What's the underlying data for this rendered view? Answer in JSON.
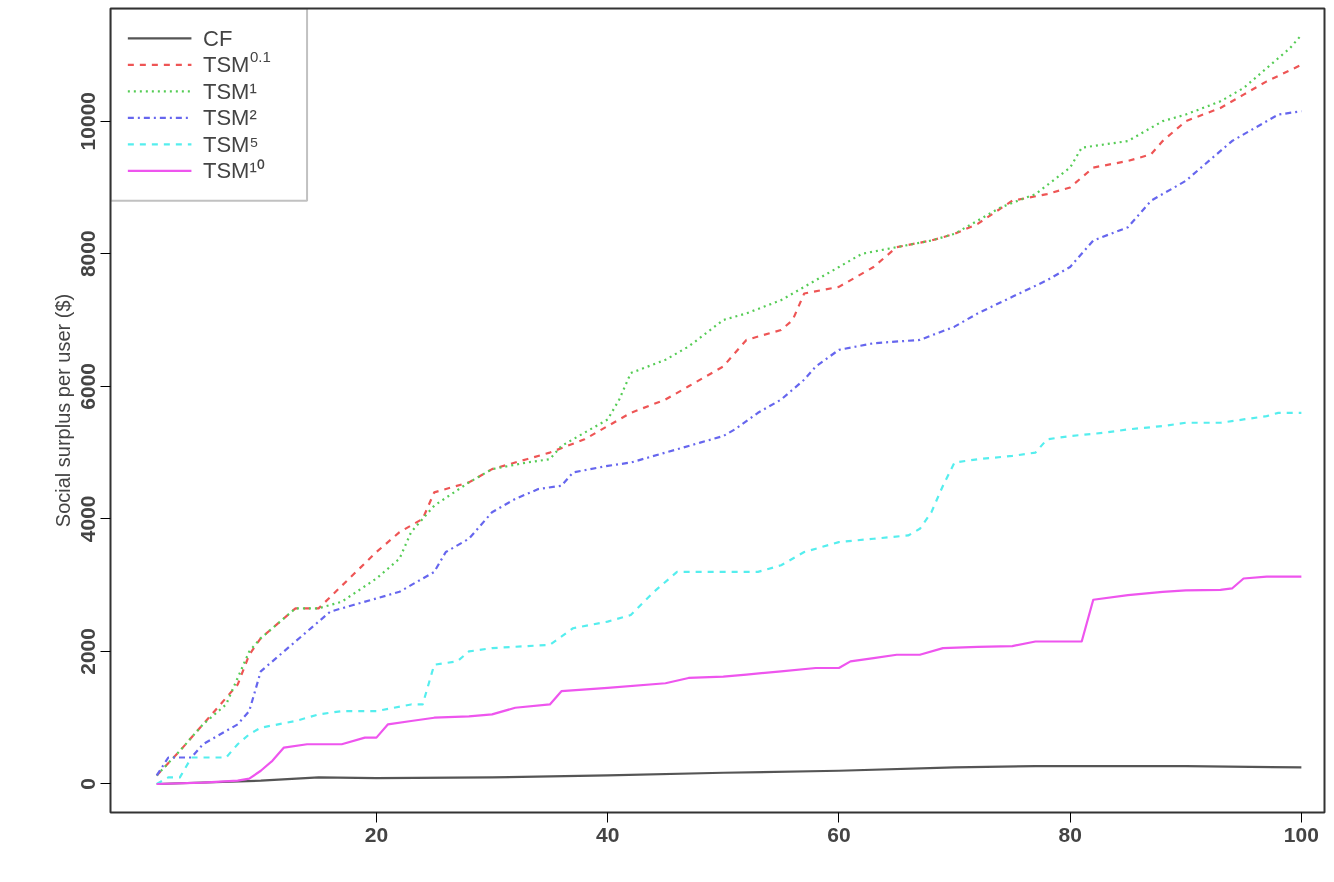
{
  "chart_data": {
    "type": "line",
    "ylabel": "Social surplus per user ($)",
    "xlim": [
      -3,
      102
    ],
    "ylim": [
      -430,
      11700
    ],
    "xticks": [
      20,
      40,
      60,
      80,
      100
    ],
    "yticks": [
      0,
      2000,
      4000,
      6000,
      8000,
      10000
    ],
    "grid": false,
    "legend": "top left",
    "series": [
      {
        "name": "CF",
        "color": "#555555",
        "line_style": "solid",
        "x": [
          1,
          10,
          15,
          20,
          30,
          40,
          50,
          60,
          70,
          77,
          90,
          100
        ],
        "values": [
          0,
          50,
          100,
          90,
          100,
          130,
          170,
          200,
          250,
          270,
          270,
          250
        ]
      },
      {
        "name": "TSM$^{0.1}$",
        "color": "#ee5555",
        "line_style": "dashed",
        "x": [
          1,
          3,
          5,
          7,
          8,
          9,
          10,
          12,
          13,
          15,
          20,
          22,
          24,
          25,
          28,
          30,
          33,
          35,
          38,
          40,
          42,
          45,
          47,
          50,
          52,
          55,
          56,
          57,
          60,
          63,
          65,
          68,
          70,
          72,
          75,
          78,
          80,
          82,
          85,
          87,
          88,
          90,
          93,
          95,
          97,
          100
        ],
        "values": [
          130,
          500,
          900,
          1300,
          1500,
          1950,
          2200,
          2500,
          2650,
          2650,
          3500,
          3800,
          4000,
          4400,
          4550,
          4750,
          4900,
          5000,
          5200,
          5400,
          5600,
          5800,
          6000,
          6300,
          6700,
          6850,
          7000,
          7400,
          7500,
          7800,
          8100,
          8200,
          8300,
          8450,
          8800,
          8900,
          9000,
          9300,
          9400,
          9500,
          9700,
          10000,
          10200,
          10400,
          10600,
          10850
        ]
      },
      {
        "name": "TSM¹",
        "color": "#55cc55",
        "line_style": "dotted",
        "x": [
          1,
          3,
          5,
          7,
          8,
          9,
          10,
          12,
          13,
          15,
          17,
          20,
          22,
          23,
          25,
          28,
          30,
          33,
          35,
          36,
          38,
          40,
          41,
          42,
          45,
          47,
          50,
          52,
          55,
          57,
          60,
          62,
          65,
          68,
          70,
          72,
          74,
          77,
          80,
          81,
          85,
          88,
          90,
          93,
          95,
          97,
          99,
          100
        ],
        "values": [
          130,
          500,
          900,
          1200,
          1600,
          2000,
          2200,
          2500,
          2650,
          2650,
          2750,
          3100,
          3400,
          3800,
          4200,
          4550,
          4750,
          4850,
          4900,
          5100,
          5300,
          5500,
          5800,
          6200,
          6400,
          6600,
          7000,
          7100,
          7300,
          7500,
          7800,
          8000,
          8100,
          8200,
          8300,
          8500,
          8700,
          8900,
          9300,
          9600,
          9700,
          10000,
          10100,
          10300,
          10500,
          10800,
          11100,
          11300
        ]
      },
      {
        "name": "TSM²",
        "color": "#6666ee",
        "line_style": "dashdot",
        "x": [
          1,
          2,
          4,
          5,
          7,
          8,
          9,
          10,
          12,
          14,
          16,
          18,
          20,
          22,
          24,
          25,
          26,
          28,
          30,
          32,
          34,
          36,
          37,
          40,
          42,
          45,
          48,
          50,
          51,
          53,
          55,
          57,
          58,
          60,
          63,
          67,
          70,
          72,
          75,
          78,
          80,
          82,
          85,
          87,
          90,
          92,
          94,
          96,
          98,
          100
        ],
        "values": [
          130,
          400,
          400,
          600,
          800,
          900,
          1100,
          1700,
          2000,
          2300,
          2600,
          2700,
          2800,
          2900,
          3100,
          3200,
          3500,
          3700,
          4100,
          4300,
          4450,
          4500,
          4700,
          4800,
          4850,
          5000,
          5150,
          5250,
          5350,
          5600,
          5800,
          6100,
          6300,
          6550,
          6650,
          6700,
          6900,
          7100,
          7350,
          7600,
          7800,
          8200,
          8400,
          8800,
          9100,
          9400,
          9700,
          9900,
          10100,
          10150
        ]
      },
      {
        "name": "TSM⁵",
        "color": "#55eeee",
        "line_style": "dashed",
        "x": [
          1,
          2,
          3,
          4,
          7,
          8,
          9,
          10,
          13,
          15,
          17,
          20,
          23,
          24,
          25,
          27,
          28,
          30,
          35,
          37,
          40,
          42,
          44,
          46,
          50,
          53,
          55,
          57,
          60,
          63,
          66,
          67,
          68,
          69,
          70,
          72,
          75,
          77,
          78,
          80,
          83,
          85,
          88,
          90,
          93,
          95,
          97,
          98,
          100
        ],
        "values": [
          0,
          100,
          100,
          400,
          400,
          600,
          750,
          850,
          950,
          1050,
          1100,
          1100,
          1200,
          1200,
          1800,
          1850,
          2000,
          2050,
          2100,
          2350,
          2450,
          2550,
          2900,
          3200,
          3200,
          3200,
          3300,
          3500,
          3650,
          3700,
          3750,
          3850,
          4100,
          4500,
          4850,
          4900,
          4950,
          5000,
          5200,
          5250,
          5300,
          5350,
          5400,
          5450,
          5450,
          5500,
          5550,
          5600,
          5600
        ]
      },
      {
        "name": "TSM¹⁰",
        "color": "#ee55ee",
        "line_style": "solid",
        "x": [
          1,
          5,
          8,
          9,
          10,
          11,
          12,
          14,
          17,
          19,
          20,
          21,
          23,
          25,
          28,
          30,
          32,
          35,
          36,
          40,
          45,
          47,
          50,
          52,
          55,
          58,
          60,
          61,
          63,
          65,
          67,
          69,
          72,
          75,
          77,
          81,
          82,
          85,
          88,
          90,
          93,
          94,
          95,
          97,
          100
        ],
        "values": [
          0,
          20,
          50,
          80,
          200,
          350,
          550,
          600,
          600,
          700,
          700,
          900,
          950,
          1000,
          1020,
          1050,
          1150,
          1200,
          1400,
          1450,
          1520,
          1600,
          1620,
          1650,
          1700,
          1750,
          1750,
          1850,
          1900,
          1950,
          1950,
          2050,
          2070,
          2080,
          2150,
          2150,
          2780,
          2850,
          2900,
          2920,
          2930,
          2950,
          3100,
          3130,
          3130
        ]
      }
    ]
  }
}
